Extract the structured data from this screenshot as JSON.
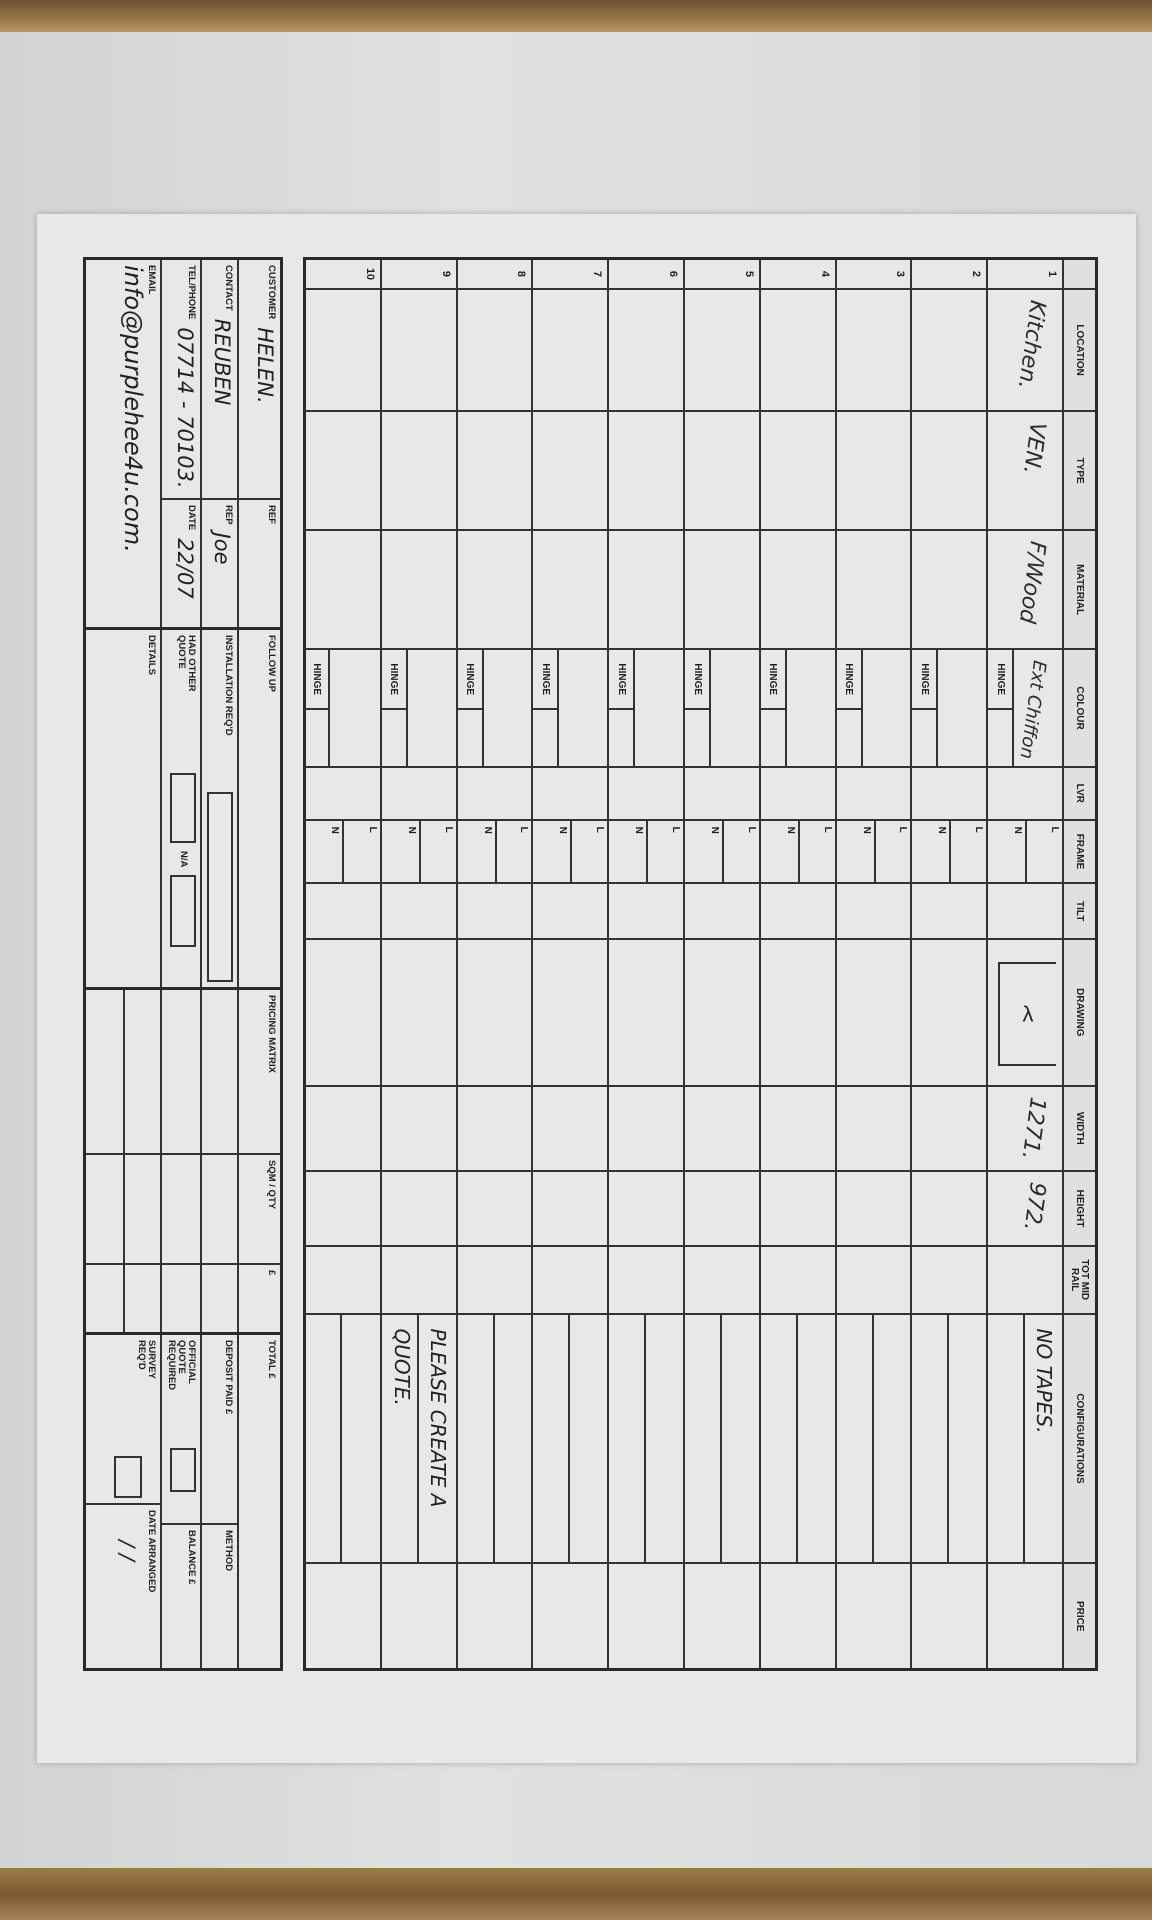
{
  "form": {
    "headers": [
      "",
      "LOCATION",
      "TYPE",
      "MATERIAL",
      "COLOUR",
      "LVR",
      "FRAME",
      "TILT",
      "DRAWING",
      "WIDTH",
      "HEIGHT",
      "TOT MID RAIL",
      "CONFIGURATIONS",
      "PRICE"
    ],
    "hinge_label": "HINGE",
    "frame_l": "L",
    "frame_n": "N",
    "rows": [
      {
        "num": "1",
        "location": "Kitchen.",
        "type": "VEN.",
        "material": "F/Wood",
        "colour": "Ext Chiffon",
        "drawing_arrow": "λ",
        "width": "1271.",
        "height": "972.",
        "config_1": "NO TAPES.",
        "config_2": ""
      },
      {
        "num": "2",
        "location": "",
        "type": "",
        "material": "",
        "colour": "",
        "drawing_arrow": "",
        "width": "",
        "height": "",
        "config_1": "",
        "config_2": ""
      },
      {
        "num": "3",
        "location": "",
        "type": "",
        "material": "",
        "colour": "",
        "drawing_arrow": "",
        "width": "",
        "height": "",
        "config_1": "",
        "config_2": ""
      },
      {
        "num": "4",
        "location": "",
        "type": "",
        "material": "",
        "colour": "",
        "drawing_arrow": "",
        "width": "",
        "height": "",
        "config_1": "",
        "config_2": ""
      },
      {
        "num": "5",
        "location": "",
        "type": "",
        "material": "",
        "colour": "",
        "drawing_arrow": "",
        "width": "",
        "height": "",
        "config_1": "",
        "config_2": ""
      },
      {
        "num": "6",
        "location": "",
        "type": "",
        "material": "",
        "colour": "",
        "drawing_arrow": "",
        "width": "",
        "height": "",
        "config_1": "",
        "config_2": ""
      },
      {
        "num": "7",
        "location": "",
        "type": "",
        "material": "",
        "colour": "",
        "drawing_arrow": "",
        "width": "",
        "height": "",
        "config_1": "",
        "config_2": ""
      },
      {
        "num": "8",
        "location": "",
        "type": "",
        "material": "",
        "colour": "",
        "drawing_arrow": "",
        "width": "",
        "height": "",
        "config_1": "",
        "config_2": ""
      },
      {
        "num": "9",
        "location": "",
        "type": "",
        "material": "",
        "colour": "",
        "drawing_arrow": "",
        "width": "",
        "height": "",
        "config_1": "PLEASE CREATE A",
        "config_2": "QUOTE."
      },
      {
        "num": "10",
        "location": "",
        "type": "",
        "material": "",
        "colour": "",
        "drawing_arrow": "",
        "width": "",
        "height": "",
        "config_1": "",
        "config_2": ""
      }
    ]
  },
  "customer": {
    "customer_label": "CUSTOMER",
    "customer_value": "HELEN.",
    "ref_label": "REF",
    "contact_label": "CONTACT",
    "contact_value": "REUBEN",
    "rep_label": "REP",
    "rep_value": "Joe",
    "phone_label": "TEL/PHONE",
    "phone_value": "07714 - 70103.",
    "date_label": "DATE",
    "date_value": "22/07",
    "email_label": "EMAIL",
    "email_value": "info@purplehee4u.com."
  },
  "follow_up": {
    "title": "FOLLOW UP",
    "installation_label": "INSTALLATION REQ'D",
    "had_other_quote_label": "HAD OTHER QUOTE",
    "na_label": "N/A",
    "details_label": "DETAILS"
  },
  "pricing": {
    "title": "PRICING MATRIX",
    "sqm_label": "SQM / QTY",
    "currency_label": "£"
  },
  "totals": {
    "total_label": "TOTAL £",
    "deposit_label": "DEPOSIT PAID £",
    "method_label": "METHOD",
    "official_quote_label": "OFFICIAL QUOTE REQUIRED",
    "balance_label": "BALANCE £",
    "survey_label": "SURVEY REQ'D",
    "date_arranged_label": "DATE ARRANGED",
    "date_arranged_value": "/ /"
  }
}
